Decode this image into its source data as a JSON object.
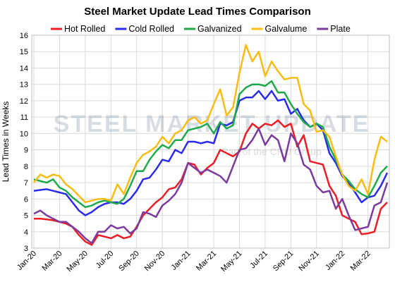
{
  "chart_data": {
    "type": "line",
    "title": "Steel Market Update Lead Times Comparison",
    "y_label": "Lead Times in Weeks",
    "watermark": "STEEL MARKET UPDATE",
    "watermark_sub": "Part of the CRU Group",
    "categories": [
      "Jan-20",
      null,
      null,
      null,
      "Mar-20",
      null,
      null,
      null,
      "May-20",
      null,
      null,
      null,
      "Jul-20",
      null,
      null,
      null,
      "Sep-20",
      null,
      null,
      null,
      "Nov-20",
      null,
      null,
      null,
      "Jan-21",
      null,
      null,
      null,
      "Mar-21",
      null,
      null,
      null,
      "May-21",
      null,
      null,
      null,
      "Jul-21",
      null,
      null,
      null,
      "Sep-21",
      null,
      null,
      null,
      "Nov-21",
      null,
      null,
      null,
      "Jan-22",
      null,
      null,
      null,
      "Mar-22",
      null,
      null,
      null
    ],
    "ylim": [
      3,
      16
    ],
    "yticks": [
      3,
      4,
      5,
      6,
      7,
      8,
      9,
      10,
      11,
      12,
      13,
      14,
      15,
      16
    ],
    "grid": true,
    "series": [
      {
        "name": "Hot Rolled",
        "color": "#ee1c25",
        "values": [
          4.8,
          4.8,
          4.75,
          4.7,
          4.6,
          4.5,
          4.3,
          3.8,
          3.4,
          3.2,
          3.8,
          3.7,
          3.6,
          3.8,
          3.6,
          3.7,
          4.3,
          5.0,
          5.4,
          5.8,
          6.1,
          6.6,
          6.7,
          7.2,
          8.2,
          8.1,
          7.5,
          7.9,
          8.2,
          9.0,
          8.8,
          8.6,
          8.9,
          10.0,
          10.6,
          10.3,
          10.6,
          10.5,
          10.8,
          10.4,
          10.6,
          9.2,
          9.9,
          8.3,
          8.2,
          8.1,
          6.8,
          6.2,
          5.0,
          4.8,
          4.6,
          3.85,
          3.9,
          4.0,
          5.4,
          5.8
        ]
      },
      {
        "name": "Cold Rolled",
        "color": "#2b2bee",
        "values": [
          6.5,
          6.55,
          6.6,
          6.5,
          6.4,
          6.3,
          5.8,
          5.3,
          5.0,
          5.2,
          5.5,
          5.7,
          5.8,
          5.8,
          5.7,
          6.0,
          6.5,
          7.2,
          7.3,
          7.8,
          8.4,
          8.3,
          9.0,
          8.8,
          9.5,
          9.5,
          9.4,
          9.5,
          9.4,
          10.6,
          10.5,
          10.7,
          12.0,
          12.2,
          12.2,
          12.6,
          12.1,
          12.6,
          12.0,
          12.1,
          11.2,
          11.5,
          10.8,
          10.4,
          10.6,
          10.2,
          8.8,
          8.2,
          7.4,
          7.0,
          6.4,
          5.8,
          6.1,
          6.2,
          6.8,
          7.6
        ]
      },
      {
        "name": "Galvanized",
        "color": "#1faa4a",
        "values": [
          7.2,
          7.1,
          7.0,
          7.2,
          6.7,
          6.5,
          6.1,
          5.8,
          5.5,
          5.6,
          5.8,
          5.9,
          5.8,
          5.7,
          6.0,
          6.8,
          7.7,
          7.7,
          8.4,
          8.9,
          9.3,
          9.1,
          9.6,
          9.6,
          10.2,
          10.3,
          10.4,
          10.6,
          10.0,
          10.7,
          10.3,
          10.5,
          12.4,
          12.8,
          13.0,
          13.0,
          12.9,
          13.2,
          12.5,
          12.5,
          11.8,
          11.2,
          10.7,
          10.4,
          10.6,
          10.4,
          9.2,
          8.4,
          7.5,
          7.1,
          6.6,
          6.3,
          6.1,
          6.8,
          7.6,
          8.0
        ]
      },
      {
        "name": "Galvalume",
        "color": "#fbbc12",
        "values": [
          7.0,
          7.5,
          7.3,
          7.5,
          7.4,
          6.9,
          6.6,
          6.2,
          5.8,
          5.9,
          6.0,
          6.0,
          5.9,
          6.9,
          6.3,
          7.3,
          8.2,
          8.7,
          8.9,
          9.2,
          9.8,
          9.4,
          10.0,
          10.2,
          10.8,
          11.0,
          10.6,
          10.8,
          11.8,
          12.7,
          11.1,
          11.6,
          13.7,
          15.4,
          14.4,
          15.0,
          13.5,
          14.4,
          13.8,
          13.3,
          13.4,
          13.4,
          11.8,
          11.4,
          10.1,
          10.2,
          9.8,
          8.6,
          7.5,
          6.8,
          6.5,
          7.2,
          6.3,
          8.4,
          9.8,
          9.5
        ]
      },
      {
        "name": "Plate",
        "color": "#7b3a9e",
        "values": [
          5.1,
          5.3,
          5.0,
          4.8,
          4.6,
          4.6,
          4.3,
          4.0,
          3.6,
          3.3,
          4.0,
          4.0,
          4.4,
          4.2,
          4.3,
          3.9,
          4.2,
          5.2,
          5.1,
          4.9,
          5.6,
          5.9,
          6.3,
          7.0,
          8.2,
          7.9,
          7.6,
          7.8,
          7.6,
          7.4,
          7.0,
          8.0,
          9.0,
          9.1,
          9.6,
          10.3,
          9.3,
          9.9,
          9.6,
          8.3,
          10.0,
          9.4,
          8.1,
          7.8,
          6.8,
          6.4,
          6.5,
          5.4,
          6.0,
          5.0,
          4.1,
          4.2,
          4.3,
          5.6,
          5.8,
          7.0
        ]
      }
    ]
  }
}
